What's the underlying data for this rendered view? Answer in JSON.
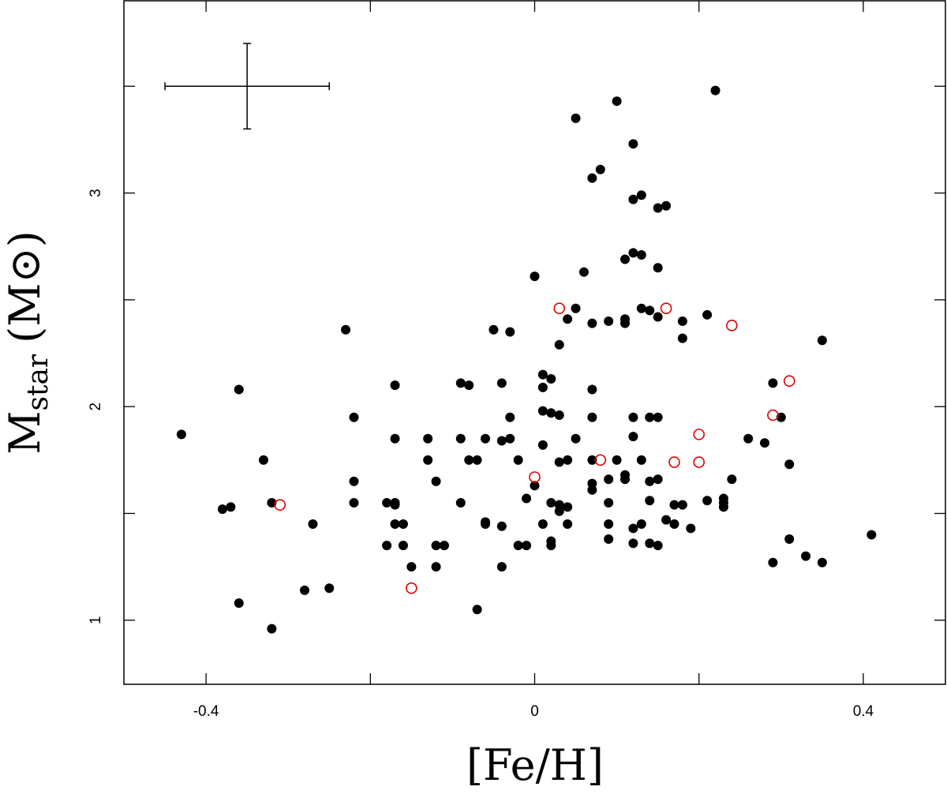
{
  "chart_data": {
    "type": "scatter",
    "title": "",
    "xlabel": "[Fe/H]",
    "ylabel_main": "M",
    "ylabel_sub": "star",
    "ylabel_unit": "(M⊙)",
    "xlim": [
      -0.5,
      0.5
    ],
    "ylim": [
      0.7,
      3.9
    ],
    "x_ticks_labeled": [
      {
        "value": -0.4,
        "label": "-0.4"
      },
      {
        "value": 0,
        "label": "0"
      },
      {
        "value": 0.4,
        "label": "0.4"
      }
    ],
    "x_ticks_minor": [
      -0.2,
      0.2
    ],
    "y_ticks_labeled": [
      {
        "value": 1,
        "label": "1"
      },
      {
        "value": 2,
        "label": "2"
      },
      {
        "value": 3,
        "label": "3"
      }
    ],
    "y_ticks_minor": [
      1.5,
      2.5,
      3.5
    ],
    "grid": false,
    "error_bar": {
      "x": -0.35,
      "y": 3.5,
      "x_err_minus": 0.1,
      "x_err_plus": 0.1,
      "y_err": 0.2
    },
    "series": [
      {
        "marker": "filled-circle",
        "color": "#000000",
        "points": [
          [
            -0.43,
            1.87
          ],
          [
            -0.36,
            2.08
          ],
          [
            -0.37,
            1.53
          ],
          [
            -0.38,
            1.52
          ],
          [
            -0.33,
            1.75
          ],
          [
            -0.32,
            1.55
          ],
          [
            -0.27,
            1.45
          ],
          [
            -0.36,
            1.08
          ],
          [
            -0.32,
            0.96
          ],
          [
            -0.28,
            1.14
          ],
          [
            -0.25,
            1.15
          ],
          [
            -0.23,
            2.36
          ],
          [
            -0.22,
            1.95
          ],
          [
            -0.22,
            1.65
          ],
          [
            -0.22,
            1.55
          ],
          [
            -0.18,
            1.55
          ],
          [
            -0.17,
            1.55
          ],
          [
            -0.17,
            1.54
          ],
          [
            -0.17,
            1.45
          ],
          [
            -0.16,
            1.45
          ],
          [
            -0.18,
            1.35
          ],
          [
            -0.16,
            1.35
          ],
          [
            -0.17,
            1.85
          ],
          [
            -0.17,
            2.1
          ],
          [
            -0.15,
            1.25
          ],
          [
            -0.13,
            1.85
          ],
          [
            -0.13,
            1.75
          ],
          [
            -0.12,
            1.65
          ],
          [
            -0.12,
            1.35
          ],
          [
            -0.11,
            1.35
          ],
          [
            -0.12,
            1.25
          ],
          [
            -0.09,
            2.11
          ],
          [
            -0.08,
            2.1
          ],
          [
            -0.09,
            1.85
          ],
          [
            -0.08,
            1.75
          ],
          [
            -0.07,
            1.75
          ],
          [
            -0.09,
            1.55
          ],
          [
            -0.06,
            1.85
          ],
          [
            -0.06,
            1.46
          ],
          [
            -0.06,
            1.45
          ],
          [
            -0.04,
            2.11
          ],
          [
            -0.04,
            1.84
          ],
          [
            -0.04,
            1.44
          ],
          [
            -0.04,
            1.25
          ],
          [
            -0.07,
            1.05
          ],
          [
            -0.05,
            2.36
          ],
          [
            -0.03,
            2.35
          ],
          [
            -0.03,
            1.95
          ],
          [
            -0.03,
            1.85
          ],
          [
            -0.02,
            1.75
          ],
          [
            -0.01,
            1.57
          ],
          [
            -0.02,
            1.35
          ],
          [
            -0.01,
            1.35
          ],
          [
            0.0,
            2.61
          ],
          [
            0.0,
            1.63
          ],
          [
            0.01,
            2.15
          ],
          [
            0.01,
            2.09
          ],
          [
            0.01,
            1.98
          ],
          [
            0.02,
            1.97
          ],
          [
            0.03,
            1.96
          ],
          [
            0.01,
            1.82
          ],
          [
            0.02,
            2.13
          ],
          [
            0.03,
            2.29
          ],
          [
            0.02,
            1.55
          ],
          [
            0.02,
            1.37
          ],
          [
            0.02,
            1.35
          ],
          [
            0.01,
            1.45
          ],
          [
            0.03,
            1.54
          ],
          [
            0.03,
            1.51
          ],
          [
            0.03,
            1.74
          ],
          [
            0.04,
            1.75
          ],
          [
            0.04,
            1.53
          ],
          [
            0.04,
            1.45
          ],
          [
            0.04,
            2.41
          ],
          [
            0.05,
            2.46
          ],
          [
            0.05,
            3.35
          ],
          [
            0.05,
            1.85
          ],
          [
            0.06,
            2.63
          ],
          [
            0.07,
            2.39
          ],
          [
            0.07,
            2.08
          ],
          [
            0.07,
            1.95
          ],
          [
            0.07,
            1.75
          ],
          [
            0.07,
            1.64
          ],
          [
            0.07,
            1.61
          ],
          [
            0.07,
            3.07
          ],
          [
            0.08,
            3.11
          ],
          [
            0.1,
            3.43
          ],
          [
            0.09,
            2.4
          ],
          [
            0.09,
            1.66
          ],
          [
            0.09,
            1.55
          ],
          [
            0.09,
            1.45
          ],
          [
            0.09,
            1.38
          ],
          [
            0.1,
            1.75
          ],
          [
            0.11,
            2.69
          ],
          [
            0.11,
            2.41
          ],
          [
            0.11,
            2.39
          ],
          [
            0.11,
            1.68
          ],
          [
            0.11,
            1.66
          ],
          [
            0.12,
            3.23
          ],
          [
            0.12,
            2.97
          ],
          [
            0.13,
            2.99
          ],
          [
            0.12,
            2.72
          ],
          [
            0.13,
            2.71
          ],
          [
            0.12,
            1.95
          ],
          [
            0.12,
            1.86
          ],
          [
            0.12,
            1.43
          ],
          [
            0.12,
            1.36
          ],
          [
            0.13,
            2.46
          ],
          [
            0.13,
            1.75
          ],
          [
            0.13,
            1.45
          ],
          [
            0.14,
            2.45
          ],
          [
            0.15,
            2.42
          ],
          [
            0.15,
            2.65
          ],
          [
            0.15,
            2.93
          ],
          [
            0.16,
            2.94
          ],
          [
            0.14,
            1.95
          ],
          [
            0.15,
            1.95
          ],
          [
            0.14,
            1.65
          ],
          [
            0.15,
            1.66
          ],
          [
            0.14,
            1.56
          ],
          [
            0.14,
            1.36
          ],
          [
            0.15,
            1.35
          ],
          [
            0.16,
            1.47
          ],
          [
            0.17,
            1.45
          ],
          [
            0.17,
            1.54
          ],
          [
            0.18,
            1.54
          ],
          [
            0.18,
            2.4
          ],
          [
            0.18,
            2.32
          ],
          [
            0.21,
            2.43
          ],
          [
            0.19,
            1.43
          ],
          [
            0.21,
            1.56
          ],
          [
            0.22,
            3.48
          ],
          [
            0.23,
            1.57
          ],
          [
            0.23,
            1.55
          ],
          [
            0.23,
            1.53
          ],
          [
            0.24,
            1.66
          ],
          [
            0.26,
            1.85
          ],
          [
            0.28,
            1.83
          ],
          [
            0.29,
            2.11
          ],
          [
            0.3,
            1.95
          ],
          [
            0.31,
            1.73
          ],
          [
            0.31,
            1.38
          ],
          [
            0.29,
            1.27
          ],
          [
            0.33,
            1.3
          ],
          [
            0.35,
            2.31
          ],
          [
            0.35,
            1.27
          ],
          [
            0.41,
            1.4
          ]
        ]
      },
      {
        "marker": "open-circle",
        "color": "#e00000",
        "points": [
          [
            -0.31,
            1.54
          ],
          [
            -0.15,
            1.15
          ],
          [
            0.0,
            1.67
          ],
          [
            0.03,
            2.46
          ],
          [
            0.08,
            1.75
          ],
          [
            0.16,
            2.46
          ],
          [
            0.17,
            1.74
          ],
          [
            0.2,
            1.87
          ],
          [
            0.2,
            1.74
          ],
          [
            0.24,
            2.38
          ],
          [
            0.29,
            1.96
          ],
          [
            0.31,
            2.12
          ]
        ]
      }
    ]
  }
}
